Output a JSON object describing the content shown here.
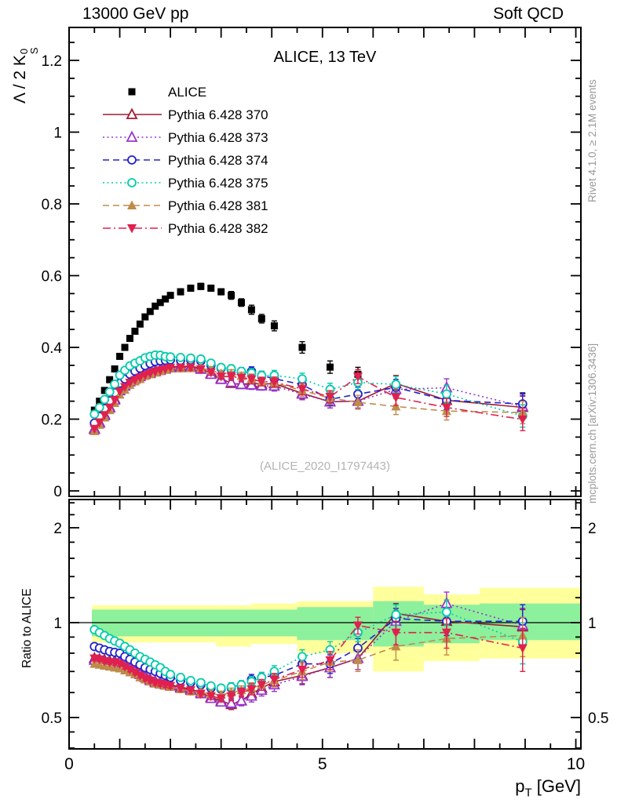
{
  "header": {
    "left": "13000 GeV pp",
    "right": "Soft QCD"
  },
  "side_notes": {
    "top": "Rivet 4.1.0, ≥ 2.1M events",
    "bottom": "mcplots.cern.ch [arXiv:1306.3436]"
  },
  "main_panel": {
    "title": "ALICE, 13 TeV",
    "watermark": "(ALICE_2020_I1797443)",
    "ylabel_prefix": "Λ / 2 K",
    "ylabel_sup": "0",
    "ylabel_sub": "S"
  },
  "ratio_panel": {
    "ylabel": "Ratio to ALICE"
  },
  "xaxis": {
    "label_main": "p",
    "label_sub": "T",
    "label_unit": " [GeV]",
    "tick_values": [
      0,
      5,
      10
    ],
    "tick_labels": [
      "0",
      "5",
      "10"
    ]
  },
  "colors": {
    "band_yellow": "#ffff9c",
    "band_green": "#8df09c",
    "frame": "#000000",
    "side_note": "#999999",
    "watermark": "#b3b3b3"
  },
  "legend": [
    {
      "label": "ALICE",
      "color": "#000000",
      "line": "none",
      "marker": "square-filled"
    },
    {
      "label": "Pythia 6.428 370",
      "color": "#9e1b30",
      "line": "solid",
      "marker": "triangle-up-open"
    },
    {
      "label": "Pythia 6.428 373",
      "color": "#9933cc",
      "line": "dotted",
      "marker": "triangle-up-open"
    },
    {
      "label": "Pythia 6.428 374",
      "color": "#2222cc",
      "line": "dashed",
      "marker": "circle-open"
    },
    {
      "label": "Pythia 6.428 375",
      "color": "#00ccaa",
      "line": "dotted",
      "marker": "circle-open"
    },
    {
      "label": "Pythia 6.428 381",
      "color": "#bf8b4a",
      "line": "dashed",
      "marker": "triangle-up-filled"
    },
    {
      "label": "Pythia 6.428 382",
      "color": "#e0204e",
      "line": "dashdot",
      "marker": "triangle-down-filled"
    }
  ],
  "chart_data": {
    "type": "scatter-line",
    "title": "ALICE, 13 TeV",
    "xlabel": "pT [GeV]",
    "ylabel_main": "Lambda / 2 K0S",
    "ylabel_ratio": "Ratio to ALICE",
    "xlim": [
      0,
      10.1
    ],
    "main_ylim": [
      0,
      1.292
    ],
    "ratio_ylim": [
      0.4,
      2.46
    ],
    "ratio_scale": "log",
    "series_value_rule": "main-panel MC value at each x = ratio × reference ALICE value",
    "x": [
      0.5,
      0.6,
      0.7,
      0.8,
      0.9,
      1.0,
      1.1,
      1.2,
      1.3,
      1.4,
      1.5,
      1.6,
      1.7,
      1.8,
      1.9,
      2.0,
      2.2,
      2.4,
      2.6,
      2.8,
      3.0,
      3.2,
      3.4,
      3.6,
      3.8,
      4.05,
      4.6,
      5.15,
      5.7,
      6.45,
      7.45,
      8.95
    ],
    "reference": {
      "name": "ALICE",
      "values": [
        0.225,
        0.25,
        0.28,
        0.31,
        0.34,
        0.375,
        0.4,
        0.425,
        0.445,
        0.465,
        0.485,
        0.5,
        0.515,
        0.525,
        0.535,
        0.545,
        0.555,
        0.565,
        0.57,
        0.565,
        0.555,
        0.545,
        0.525,
        0.505,
        0.48,
        0.46,
        0.4,
        0.345,
        0.325,
        0.28,
        0.25,
        0.24
      ]
    },
    "ratio_err": [
      0.012,
      0.012,
      0.012,
      0.012,
      0.012,
      0.012,
      0.012,
      0.012,
      0.012,
      0.012,
      0.012,
      0.012,
      0.012,
      0.012,
      0.012,
      0.012,
      0.015,
      0.015,
      0.015,
      0.015,
      0.015,
      0.02,
      0.02,
      0.025,
      0.025,
      0.03,
      0.04,
      0.05,
      0.06,
      0.08,
      0.1,
      0.13
    ],
    "series": [
      {
        "id": "pythia-6428-370",
        "name": "Pythia 6.428 370",
        "color": "#9e1b30",
        "line": "solid",
        "marker": "triangle-up-open",
        "ratio": [
          0.77,
          0.765,
          0.76,
          0.755,
          0.755,
          0.755,
          0.74,
          0.725,
          0.705,
          0.69,
          0.675,
          0.66,
          0.65,
          0.645,
          0.64,
          0.635,
          0.625,
          0.615,
          0.6,
          0.58,
          0.565,
          0.55,
          0.565,
          0.595,
          0.62,
          0.65,
          0.68,
          0.72,
          0.77,
          1.07,
          1.01,
          0.97
        ]
      },
      {
        "id": "pythia-6428-373",
        "name": "Pythia 6.428 373",
        "color": "#9933cc",
        "line": "dotted",
        "marker": "triangle-up-open",
        "ratio": [
          0.76,
          0.755,
          0.75,
          0.745,
          0.745,
          0.745,
          0.73,
          0.715,
          0.7,
          0.685,
          0.67,
          0.655,
          0.645,
          0.64,
          0.635,
          0.63,
          0.62,
          0.61,
          0.595,
          0.575,
          0.56,
          0.555,
          0.565,
          0.585,
          0.61,
          0.635,
          0.675,
          0.72,
          0.77,
          1.01,
          1.15,
          0.98
        ]
      },
      {
        "id": "pythia-6428-374",
        "name": "Pythia 6.428 374",
        "color": "#2222cc",
        "line": "dashed",
        "marker": "circle-open",
        "ratio": [
          0.84,
          0.83,
          0.82,
          0.81,
          0.805,
          0.8,
          0.78,
          0.765,
          0.75,
          0.735,
          0.72,
          0.71,
          0.7,
          0.69,
          0.68,
          0.67,
          0.655,
          0.645,
          0.635,
          0.62,
          0.615,
          0.62,
          0.63,
          0.66,
          0.67,
          0.68,
          0.74,
          0.74,
          0.83,
          1.03,
          1.01,
          1.01
        ]
      },
      {
        "id": "pythia-6428-375",
        "name": "Pythia 6.428 375",
        "color": "#00ccaa",
        "line": "dotted",
        "marker": "circle-open",
        "ratio": [
          0.95,
          0.93,
          0.91,
          0.89,
          0.875,
          0.86,
          0.84,
          0.82,
          0.8,
          0.78,
          0.765,
          0.75,
          0.735,
          0.72,
          0.7,
          0.685,
          0.67,
          0.655,
          0.645,
          0.63,
          0.62,
          0.625,
          0.635,
          0.65,
          0.67,
          0.7,
          0.78,
          0.82,
          0.93,
          1.06,
          1.08,
          0.87
        ]
      },
      {
        "id": "pythia-6428-381",
        "name": "Pythia 6.428 381",
        "color": "#bf8b4a",
        "line": "dashed",
        "marker": "triangle-up-filled",
        "ratio": [
          0.74,
          0.735,
          0.73,
          0.725,
          0.72,
          0.715,
          0.705,
          0.695,
          0.685,
          0.67,
          0.66,
          0.65,
          0.64,
          0.635,
          0.63,
          0.625,
          0.615,
          0.605,
          0.6,
          0.595,
          0.59,
          0.6,
          0.61,
          0.62,
          0.635,
          0.655,
          0.7,
          0.75,
          0.76,
          0.84,
          0.89,
          0.91
        ]
      },
      {
        "id": "pythia-6428-382",
        "name": "Pythia 6.428 382",
        "color": "#e0204e",
        "line": "dashdot",
        "marker": "triangle-down-filled",
        "ratio": [
          0.77,
          0.765,
          0.755,
          0.75,
          0.745,
          0.74,
          0.725,
          0.71,
          0.695,
          0.68,
          0.665,
          0.655,
          0.645,
          0.64,
          0.635,
          0.63,
          0.62,
          0.61,
          0.595,
          0.585,
          0.575,
          0.585,
          0.6,
          0.615,
          0.635,
          0.66,
          0.71,
          0.76,
          0.98,
          0.93,
          0.93,
          0.83
        ]
      }
    ],
    "bands": {
      "yellow": [
        {
          "x0": 0.45,
          "x1": 2.9,
          "lo": 0.865,
          "hi": 1.135
        },
        {
          "x0": 2.9,
          "x1": 3.6,
          "lo": 0.84,
          "hi": 1.135
        },
        {
          "x0": 3.6,
          "x1": 4.5,
          "lo": 0.855,
          "hi": 1.15
        },
        {
          "x0": 4.5,
          "x1": 6.0,
          "lo": 0.8,
          "hi": 1.17
        },
        {
          "x0": 6.0,
          "x1": 7.0,
          "lo": 0.7,
          "hi": 1.3
        },
        {
          "x0": 7.0,
          "x1": 8.1,
          "lo": 0.755,
          "hi": 1.23
        },
        {
          "x0": 8.1,
          "x1": 10.1,
          "lo": 0.77,
          "hi": 1.29
        }
      ],
      "green": [
        {
          "x0": 0.45,
          "x1": 4.5,
          "lo": 0.905,
          "hi": 1.1
        },
        {
          "x0": 4.5,
          "x1": 6.0,
          "lo": 0.88,
          "hi": 1.12
        },
        {
          "x0": 6.0,
          "x1": 7.0,
          "lo": 0.84,
          "hi": 1.17
        },
        {
          "x0": 7.0,
          "x1": 8.1,
          "lo": 0.86,
          "hi": 1.14
        },
        {
          "x0": 8.1,
          "x1": 10.1,
          "lo": 0.88,
          "hi": 1.15
        }
      ]
    },
    "main_yticks": {
      "values": [
        0,
        0.2,
        0.4,
        0.6,
        0.8,
        1,
        1.2
      ],
      "labels": [
        "0",
        "0.2",
        "0.4",
        "0.6",
        "0.8",
        "1",
        "1.2"
      ]
    },
    "ratio_yticks": {
      "values": [
        0.5,
        1,
        2
      ],
      "labels": [
        "0.5",
        "1",
        "2"
      ]
    }
  }
}
